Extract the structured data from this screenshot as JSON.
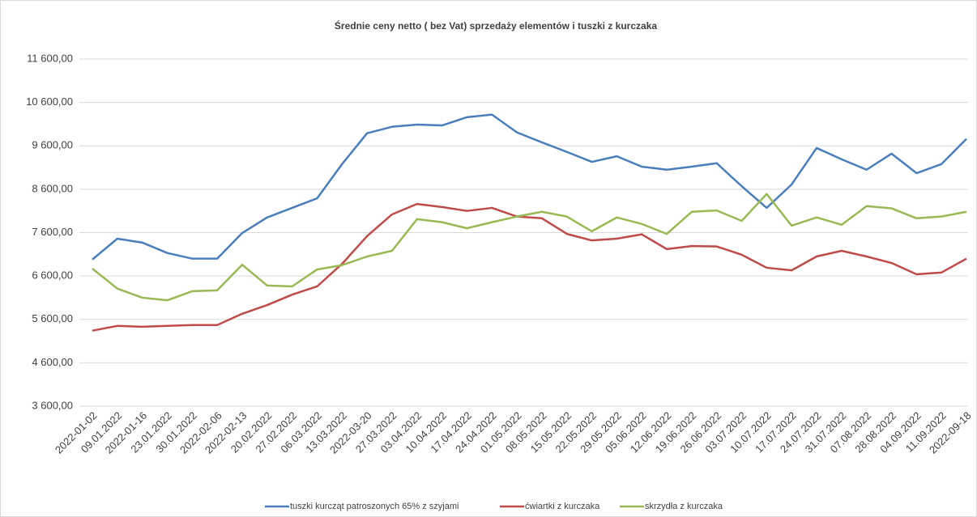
{
  "chart_data": {
    "type": "line",
    "title": "Średnie ceny netto ( bez Vat) sprzedaży elementów i tuszki z kurczaka",
    "categories": [
      "2022-01-02",
      "09.01.2022",
      "2022-01-16",
      "23.01.2022",
      "30.01.2022",
      "2022-02-06",
      "2022-02-13",
      "20.02.2022",
      "27.02.2022",
      "06.03.2022",
      "13.03.2022",
      "2022-03-20",
      "27.03.2022",
      "03.04.2022",
      "10.04.2022",
      "17.04.2022",
      "24.04.2022",
      "01.05.2022",
      "08.05.2022",
      "15.05.2022",
      "22.05.2022",
      "29.05.2022",
      "05.06.2022",
      "12.06.2022",
      "19.06.2022",
      "26.06.2022",
      "03.07.2022",
      "10.07.2022",
      "17.07.2022",
      "24.07.2022",
      "31.07.2022",
      "07.08.2022",
      "28.08.2022",
      "04.09.2022",
      "11.09.2022",
      "2022-09-18"
    ],
    "series": [
      {
        "name": "tuszki kurcząt patroszonych 65% z szyjami",
        "color": "#4a7ebb",
        "values": [
          6980,
          7460,
          7370,
          7130,
          7000,
          7000,
          7590,
          7950,
          8170,
          8390,
          9180,
          9890,
          10040,
          10090,
          10070,
          10260,
          10320,
          9910,
          9680,
          9460,
          9230,
          9360,
          9120,
          9050,
          9120,
          9200,
          8670,
          8170,
          8710,
          9550,
          9290,
          9050,
          9420,
          8970,
          9180,
          9760
        ]
      },
      {
        "name": "ćwiartki z kurczaka",
        "color": "#be4b48",
        "values": [
          5340,
          5450,
          5430,
          5450,
          5470,
          5470,
          5730,
          5930,
          6170,
          6360,
          6880,
          7520,
          8020,
          8260,
          8190,
          8100,
          8170,
          7970,
          7930,
          7570,
          7420,
          7460,
          7560,
          7220,
          7290,
          7280,
          7090,
          6790,
          6730,
          7050,
          7180,
          7050,
          6900,
          6640,
          6680,
          7000
        ]
      },
      {
        "name": "skrzydła z kurczaka",
        "color": "#98b954",
        "values": [
          6770,
          6310,
          6100,
          6040,
          6250,
          6270,
          6860,
          6380,
          6360,
          6750,
          6850,
          7050,
          7180,
          7910,
          7840,
          7700,
          7840,
          7970,
          8080,
          7970,
          7630,
          7950,
          7800,
          7570,
          8080,
          8110,
          7870,
          8490,
          7760,
          7950,
          7780,
          8210,
          8160,
          7930,
          7970,
          8080
        ]
      }
    ],
    "ylim": [
      3600,
      11600
    ],
    "yticks": [
      {
        "value": 3600,
        "label": "3 600,00"
      },
      {
        "value": 4600,
        "label": "4 600,00"
      },
      {
        "value": 5600,
        "label": "5 600,00"
      },
      {
        "value": 6600,
        "label": "6 600,00"
      },
      {
        "value": 7600,
        "label": "7 600,00"
      },
      {
        "value": 8600,
        "label": "8 600,00"
      },
      {
        "value": 9600,
        "label": "9 600,00"
      },
      {
        "value": 10600,
        "label": "10 600,00"
      },
      {
        "value": 11600,
        "label": "11 600,00"
      }
    ],
    "grid": true,
    "legend": "bottom"
  }
}
